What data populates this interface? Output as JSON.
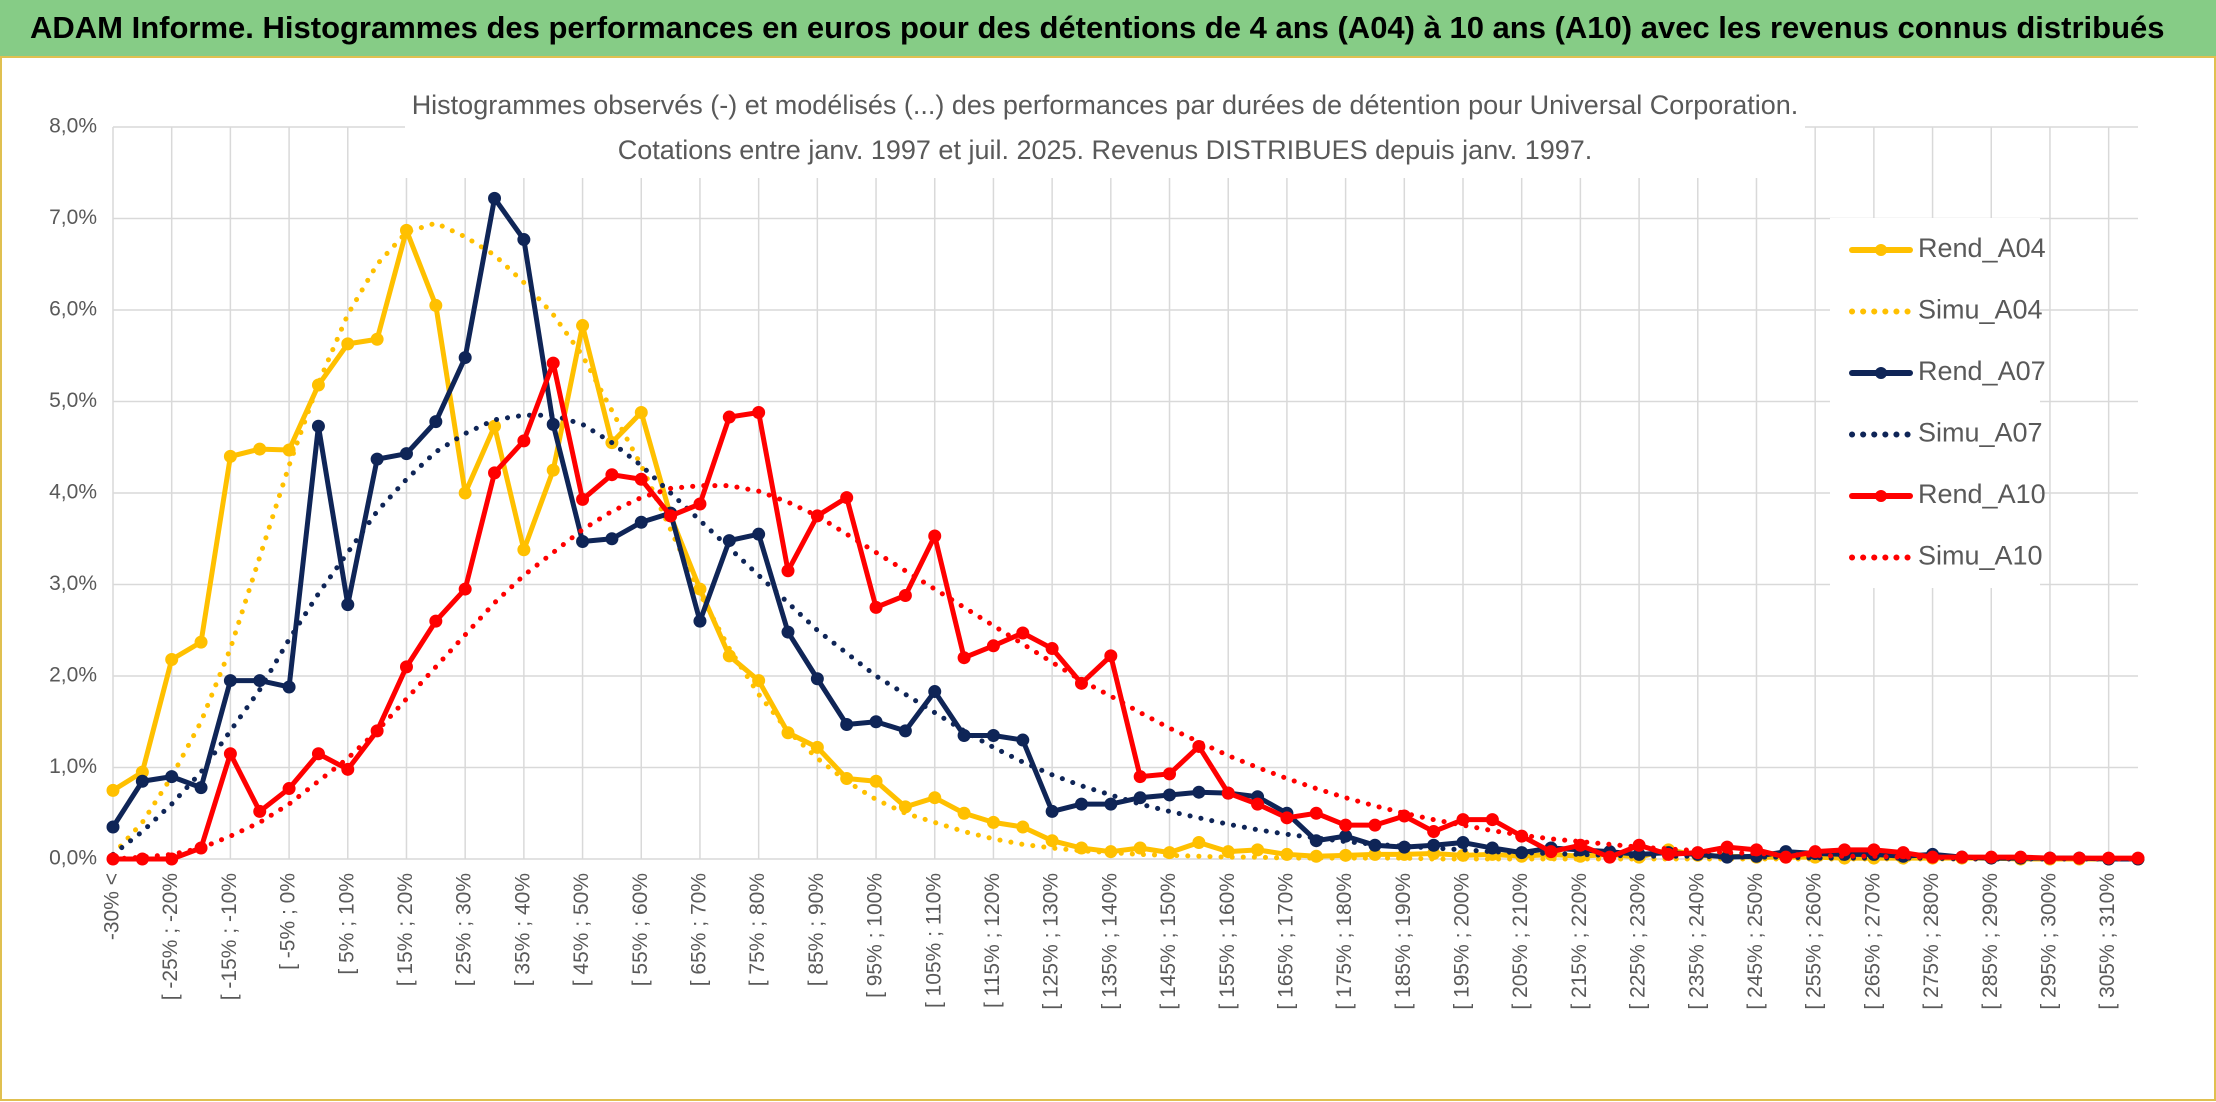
{
  "chart_data": {
    "type": "line",
    "header": "ADAM Informe. Histogrammes des performances en euros pour des détentions de 4 ans (A04) à 10 ans (A10) avec les revenus connus distribués",
    "title": "Histogrammes observés (-) et modélisés (...) des performances par durées de détention pour Universal Corporation.",
    "subtitle": "Cotations entre janv. 1997 et juil. 2025. Revenus DISTRIBUES depuis janv. 1997.",
    "categories": [
      "-30% <",
      null,
      "[ -25% ; -20%",
      null,
      "[ -15% ; -10%",
      null,
      "[ -5% ; 0%",
      null,
      "[ 5% ; 10%",
      null,
      "[ 15% ; 20%",
      null,
      "[ 25% ; 30%",
      null,
      "[ 35% ; 40%",
      null,
      "[ 45% ; 50%",
      null,
      "[ 55% ; 60%",
      null,
      "[ 65% ; 70%",
      null,
      "[ 75% ; 80%",
      null,
      "[ 85% ; 90%",
      null,
      "[ 95% ; 100%",
      null,
      "[ 105% ; 110%",
      null,
      "[ 115% ; 120%",
      null,
      "[ 125% ; 130%",
      null,
      "[ 135% ; 140%",
      null,
      "[ 145% ; 150%",
      null,
      "[ 155% ; 160%",
      null,
      "[ 165% ; 170%",
      null,
      "[ 175% ; 180%",
      null,
      "[ 185% ; 190%",
      null,
      "[ 195% ; 200%",
      null,
      "[ 205% ; 210%",
      null,
      "[ 215% ; 220%",
      null,
      "[ 225% ; 230%",
      null,
      "[ 235% ; 240%",
      null,
      "[ 245% ; 250%",
      null,
      "[ 255% ; 260%",
      null,
      "[ 265% ; 270%",
      null,
      "[ 275% ; 280%",
      null,
      "[ 285% ; 290%",
      null,
      "[ 295% ; 300%",
      null,
      "[ 305% ; 310%",
      null
    ],
    "ylim": [
      0,
      8
    ],
    "yticks": [
      {
        "value": 0,
        "label": "0,0%"
      },
      {
        "value": 1,
        "label": "1,0%"
      },
      {
        "value": 2,
        "label": "2,0%"
      },
      {
        "value": 3,
        "label": "3,0%"
      },
      {
        "value": 4,
        "label": "4,0%"
      },
      {
        "value": 5,
        "label": "5,0%"
      },
      {
        "value": 6,
        "label": "6,0%"
      },
      {
        "value": 7,
        "label": "7,0%"
      },
      {
        "value": 8,
        "label": "8,0%"
      }
    ],
    "grid": true,
    "legend": "right",
    "series": [
      {
        "name": "Rend_A04",
        "color": "#ffc000",
        "style": "solid",
        "markers": true,
        "values": [
          0.75,
          0.95,
          2.18,
          2.37,
          4.4,
          4.48,
          4.47,
          5.18,
          5.63,
          5.68,
          6.87,
          6.05,
          4.0,
          4.73,
          3.38,
          4.25,
          5.83,
          4.55,
          4.88,
          3.75,
          2.95,
          2.22,
          1.95,
          1.38,
          1.22,
          0.88,
          0.85,
          0.57,
          0.67,
          0.5,
          0.4,
          0.35,
          0.2,
          0.12,
          0.08,
          0.12,
          0.07,
          0.18,
          0.08,
          0.1,
          0.05,
          0.03,
          0.04,
          0.05,
          0.05,
          0.06,
          0.04,
          0.05,
          0.03,
          0.05,
          0.03,
          0.05,
          0.02,
          0.1,
          0.04,
          0.03,
          0.02,
          0.02,
          0.02,
          0.01,
          0.01,
          0.01,
          0.01,
          0.01,
          0.01,
          0,
          0,
          0,
          0,
          0
        ]
      },
      {
        "name": "Simu_A04",
        "color": "#ffc000",
        "style": "dotted",
        "markers": false,
        "values": [
          0.05,
          0.4,
          0.9,
          1.5,
          2.3,
          3.3,
          4.3,
          5.2,
          5.95,
          6.5,
          6.85,
          6.95,
          6.8,
          6.6,
          6.3,
          5.95,
          5.5,
          4.9,
          4.3,
          3.6,
          2.9,
          2.3,
          1.8,
          1.4,
          1.1,
          0.85,
          0.65,
          0.5,
          0.4,
          0.3,
          0.22,
          0.16,
          0.12,
          0.09,
          0.07,
          0.05,
          0.04,
          0.03,
          0.02,
          0.02,
          0.01,
          0.01,
          0.01,
          0.01,
          0.01,
          0,
          0,
          0,
          0,
          0,
          0,
          0,
          0,
          0,
          0,
          0,
          0,
          0,
          0,
          0,
          0,
          0,
          0,
          0,
          0,
          0,
          0,
          0,
          0,
          0
        ]
      },
      {
        "name": "Rend_A07",
        "color": "#0f2557",
        "style": "solid",
        "markers": true,
        "values": [
          0.35,
          0.85,
          0.9,
          0.78,
          1.95,
          1.95,
          1.88,
          4.73,
          2.78,
          4.37,
          4.43,
          4.78,
          5.48,
          7.22,
          6.77,
          4.75,
          3.47,
          3.5,
          3.68,
          3.78,
          2.6,
          3.48,
          3.55,
          2.48,
          1.97,
          1.47,
          1.5,
          1.4,
          1.83,
          1.35,
          1.35,
          1.3,
          0.52,
          0.6,
          0.6,
          0.67,
          0.7,
          0.73,
          0.72,
          0.68,
          0.5,
          0.2,
          0.25,
          0.15,
          0.13,
          0.15,
          0.18,
          0.12,
          0.07,
          0.12,
          0.1,
          0.08,
          0.05,
          0.07,
          0.05,
          0.02,
          0.03,
          0.08,
          0.06,
          0.05,
          0.05,
          0.03,
          0.05,
          0.02,
          0.01,
          0.01,
          0.01,
          0.01,
          0,
          0
        ]
      },
      {
        "name": "Simu_A07",
        "color": "#0f2557",
        "style": "dotted",
        "markers": false,
        "values": [
          0.05,
          0.3,
          0.6,
          0.95,
          1.4,
          1.85,
          2.4,
          2.9,
          3.35,
          3.8,
          4.15,
          4.45,
          4.65,
          4.8,
          4.85,
          4.85,
          4.75,
          4.55,
          4.3,
          4.0,
          3.7,
          3.4,
          3.1,
          2.8,
          2.5,
          2.25,
          2.0,
          1.8,
          1.6,
          1.4,
          1.22,
          1.06,
          0.92,
          0.8,
          0.7,
          0.6,
          0.52,
          0.45,
          0.38,
          0.32,
          0.27,
          0.23,
          0.19,
          0.16,
          0.14,
          0.12,
          0.1,
          0.08,
          0.07,
          0.06,
          0.05,
          0.04,
          0.03,
          0.03,
          0.03,
          0.02,
          0.02,
          0.02,
          0.01,
          0.01,
          0.01,
          0.01,
          0.01,
          0,
          0,
          0,
          0,
          0,
          0,
          0
        ]
      },
      {
        "name": "Rend_A10",
        "color": "#ff0000",
        "style": "solid",
        "markers": true,
        "values": [
          0,
          0,
          0,
          0.12,
          1.15,
          0.52,
          0.77,
          1.15,
          0.98,
          1.4,
          2.1,
          2.6,
          2.95,
          4.22,
          4.57,
          5.42,
          3.93,
          4.2,
          4.15,
          3.75,
          3.88,
          4.83,
          4.88,
          3.15,
          3.75,
          3.95,
          2.75,
          2.88,
          3.53,
          2.2,
          2.33,
          2.47,
          2.3,
          1.92,
          2.22,
          0.9,
          0.93,
          1.23,
          0.72,
          0.6,
          0.45,
          0.5,
          0.37,
          0.37,
          0.47,
          0.3,
          0.43,
          0.43,
          0.25,
          0.08,
          0.15,
          0.02,
          0.15,
          0.05,
          0.07,
          0.13,
          0.1,
          0.02,
          0.08,
          0.1,
          0.1,
          0.07,
          0.02,
          0.02,
          0.02,
          0.02,
          0.01,
          0.01,
          0.01,
          0.01
        ]
      },
      {
        "name": "Simu_A10",
        "color": "#ff0000",
        "style": "dotted",
        "markers": false,
        "values": [
          0,
          0.02,
          0.05,
          0.12,
          0.25,
          0.4,
          0.6,
          0.85,
          1.1,
          1.4,
          1.75,
          2.1,
          2.45,
          2.8,
          3.1,
          3.35,
          3.6,
          3.8,
          3.95,
          4.05,
          4.08,
          4.08,
          4.02,
          3.9,
          3.75,
          3.55,
          3.35,
          3.15,
          2.95,
          2.75,
          2.55,
          2.35,
          2.15,
          1.95,
          1.78,
          1.6,
          1.43,
          1.28,
          1.13,
          1.0,
          0.88,
          0.77,
          0.67,
          0.58,
          0.5,
          0.43,
          0.37,
          0.31,
          0.26,
          0.22,
          0.19,
          0.16,
          0.13,
          0.11,
          0.09,
          0.07,
          0.06,
          0.05,
          0.04,
          0.03,
          0.03,
          0.02,
          0.02,
          0.01,
          0.01,
          0.01,
          0.01,
          0.01,
          0,
          0
        ]
      }
    ]
  }
}
